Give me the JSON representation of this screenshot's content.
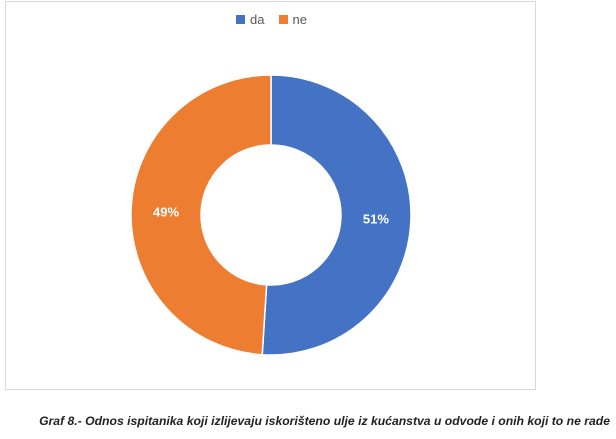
{
  "chart_data": {
    "type": "pie",
    "variant": "donut",
    "categories": [
      "da",
      "ne"
    ],
    "values": [
      51,
      49
    ],
    "data_labels": [
      "51%",
      "49%"
    ],
    "colors": [
      "#4472c4",
      "#ed7d31"
    ],
    "legend": {
      "position": "top",
      "entries": [
        "da",
        "ne"
      ]
    },
    "title": "",
    "xlabel": "",
    "ylabel": ""
  },
  "caption": "Graf 8.- Odnos ispitanika koji izlijevaju iskorišteno ulje iz kućanstva u odvode i onih koji to ne rade"
}
